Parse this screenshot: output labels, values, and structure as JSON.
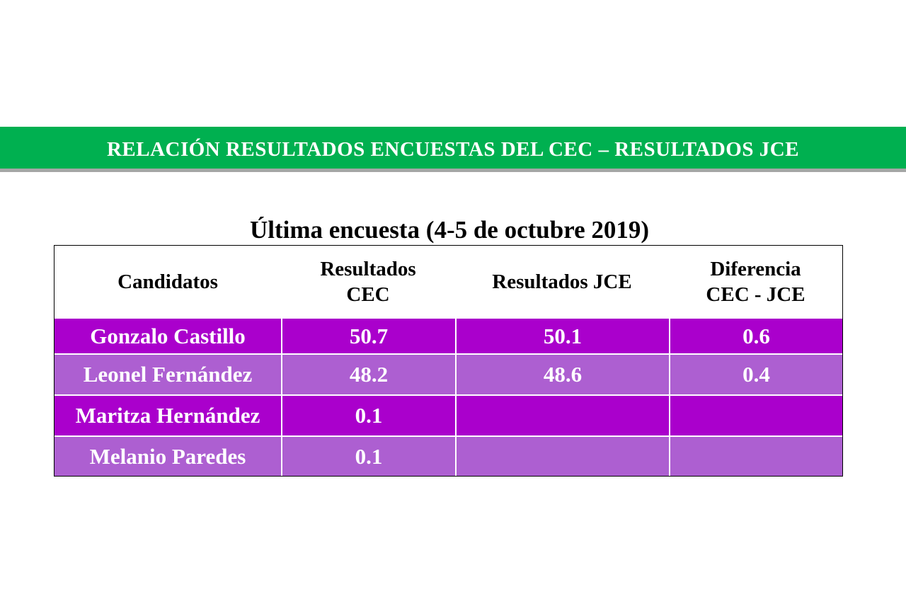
{
  "header": {
    "title": "RELACIÓN RESULTADOS ENCUESTAS DEL CEC – RESULTADOS JCE"
  },
  "table": {
    "title": "Última encuesta (4-5 de octubre 2019)",
    "columns": [
      [
        "Candidatos"
      ],
      [
        "Resultados",
        "CEC"
      ],
      [
        "Resultados JCE"
      ],
      [
        "Diferencia",
        "CEC - JCE"
      ]
    ],
    "rows": [
      [
        "Gonzalo Castillo",
        50.7,
        50.1,
        0.6
      ],
      [
        "Leonel Fernández",
        48.2,
        48.6,
        0.4
      ],
      [
        "Maritza Hernández",
        0.1,
        null,
        null
      ],
      [
        "Melanio Paredes",
        0.1,
        null,
        null
      ]
    ]
  }
}
